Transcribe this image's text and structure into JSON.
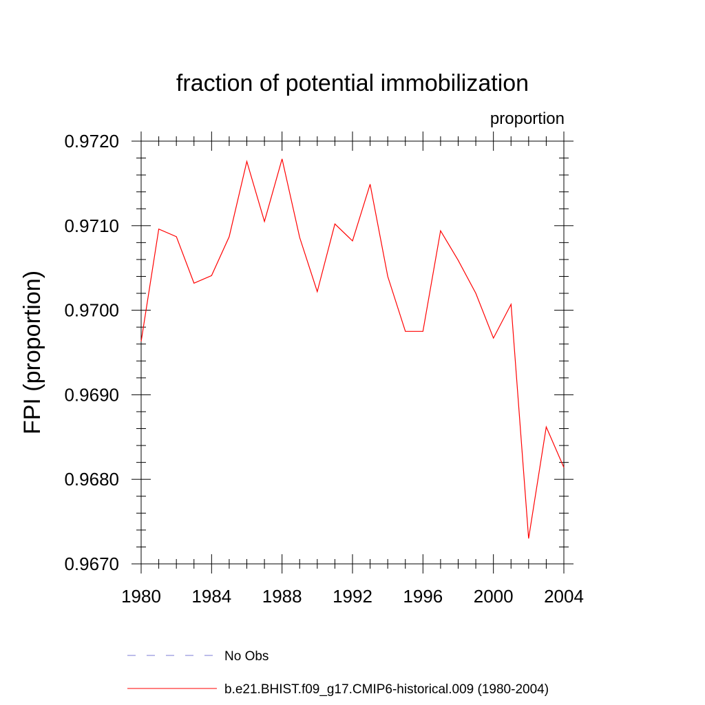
{
  "chart_data": {
    "type": "line",
    "title": "fraction of potential immobilization",
    "units_label": "proportion",
    "ylabel": "FPI  (proportion)",
    "xlabel": "",
    "xlim": [
      1980,
      2004
    ],
    "ylim": [
      0.967,
      0.972
    ],
    "x_ticks": [
      "1980",
      "1984",
      "1988",
      "1992",
      "1996",
      "2000",
      "2004"
    ],
    "y_ticks": [
      "0.9670",
      "0.9680",
      "0.9690",
      "0.9700",
      "0.9710",
      "0.9720"
    ],
    "series": [
      {
        "name": "b.e21.BHIST.f09_g17.CMIP6-historical.009 (1980-2004)",
        "color": "#ff0000",
        "x": [
          1980,
          1981,
          1982,
          1983,
          1984,
          1985,
          1986,
          1987,
          1988,
          1989,
          1990,
          1991,
          1992,
          1993,
          1994,
          1995,
          1996,
          1997,
          1998,
          1999,
          2000,
          2001,
          2002,
          2003,
          2004
        ],
        "values": [
          0.96963,
          0.97096,
          0.97087,
          0.97032,
          0.97041,
          0.97087,
          0.97176,
          0.97105,
          0.97179,
          0.97086,
          0.97022,
          0.97102,
          0.97082,
          0.97149,
          0.9704,
          0.96975,
          0.96975,
          0.97094,
          0.97059,
          0.9702,
          0.96967,
          0.97007,
          0.9673,
          0.96862,
          0.96814
        ]
      }
    ],
    "legend": [
      {
        "label": "No Obs",
        "style": "dashed",
        "color": "#7b7bd6"
      },
      {
        "label": "b.e21.BHIST.f09_g17.CMIP6-historical.009 (1980-2004)",
        "style": "solid",
        "color": "#ff0000"
      }
    ]
  }
}
